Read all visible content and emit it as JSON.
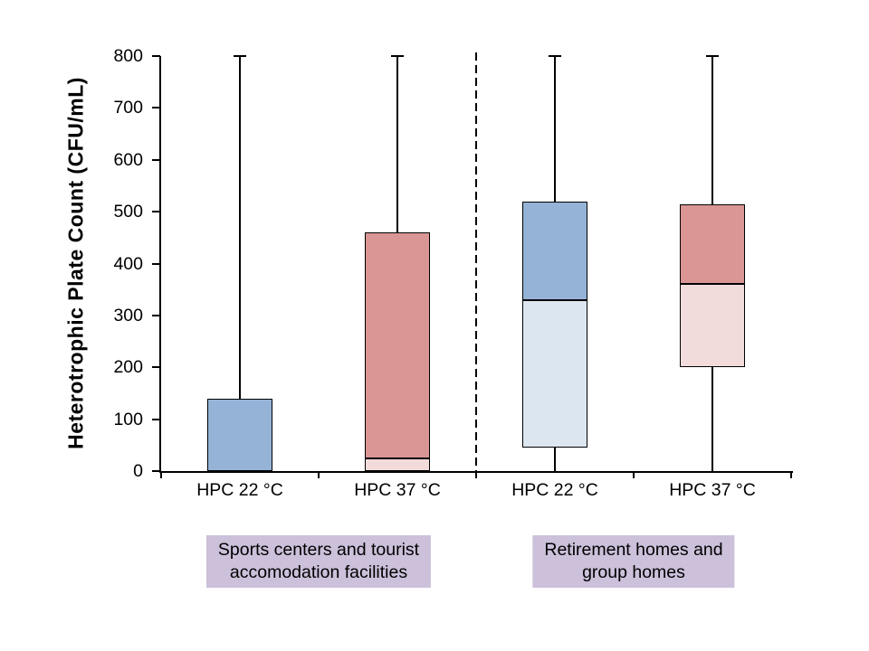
{
  "chart_data": {
    "type": "boxplot",
    "title": "",
    "ylabel": "Heterotrophic Plate Count (CFU/mL)",
    "xlabel": "",
    "ylim": [
      0,
      800
    ],
    "ytick_step": 100,
    "ytick_labels": [
      "0",
      "100",
      "200",
      "300",
      "400",
      "500",
      "600",
      "700",
      "800"
    ],
    "grid": "off",
    "legend": "none",
    "categories": [
      "HPC 22 °C",
      "HPC 37 °C",
      "HPC 22 °C",
      "HPC 37 °C"
    ],
    "separator": {
      "style": "dashed",
      "boundary_index": 2
    },
    "series": [
      {
        "label": "HPC 22 °C",
        "group": "Sports centers and tourist accomodation facilities",
        "q1": 0,
        "median": 0,
        "q3": 140,
        "whisker_low": 0,
        "whisker_high": 800,
        "box_lower_color": "#DCE6F1",
        "box_upper_color": "#95B3D7"
      },
      {
        "label": "HPC 37 °C",
        "group": "Sports centers and tourist accomodation facilities",
        "q1": 0,
        "median": 25,
        "q3": 460,
        "whisker_low": 0,
        "whisker_high": 800,
        "box_lower_color": "#F2DCDB",
        "box_upper_color": "#D99694"
      },
      {
        "label": "HPC 22 °C",
        "group": "Retirement homes and group homes",
        "q1": 45,
        "median": 330,
        "q3": 520,
        "whisker_low": 0,
        "whisker_high": 800,
        "box_lower_color": "#DCE6F1",
        "box_upper_color": "#95B3D7"
      },
      {
        "label": "HPC 37 °C",
        "group": "Retirement homes and group homes",
        "q1": 200,
        "median": 360,
        "q3": 515,
        "whisker_low": 0,
        "whisker_high": 800,
        "box_lower_color": "#F2DCDB",
        "box_upper_color": "#D99694"
      }
    ],
    "group_labels": [
      {
        "line1": "Sports centers and tourist",
        "line2": "accomodation facilities",
        "bg": "#CCC0DA"
      },
      {
        "line1": "Retirement homes and",
        "line2": "group homes",
        "bg": "#CCC0DA"
      }
    ]
  },
  "colors": {
    "box_blue": "#95B3D7",
    "box_blue_light": "#DCE6F1",
    "box_red": "#D99694",
    "box_red_light": "#F2DCDB",
    "group_label_bg": "#CCC0DA",
    "axis": "#000000",
    "background": "#FFFFFF"
  }
}
